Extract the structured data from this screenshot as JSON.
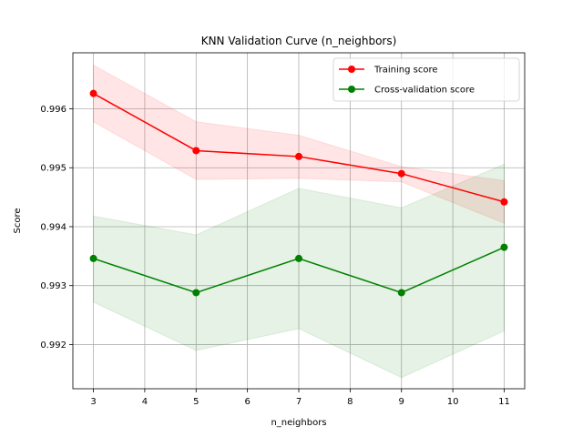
{
  "chart_data": {
    "type": "line",
    "title": "KNN Validation Curve (n_neighbors)",
    "xlabel": "n_neighbors",
    "ylabel": "Score",
    "x": [
      3,
      5,
      7,
      9,
      11
    ],
    "xlim": [
      2.6,
      11.4
    ],
    "ylim": [
      0.99125,
      0.99695
    ],
    "x_ticks": [
      "3",
      "4",
      "5",
      "6",
      "7",
      "8",
      "9",
      "10",
      "11"
    ],
    "y_ticks": [
      "0.992",
      "0.993",
      "0.994",
      "0.995",
      "0.996"
    ],
    "grid": true,
    "legend_position": "top-right",
    "series": [
      {
        "name": "Training score",
        "color": "#ff0000",
        "values": [
          0.99626,
          0.99529,
          0.99519,
          0.9949,
          0.99442
        ],
        "band_lower": [
          0.99578,
          0.9948,
          0.99482,
          0.99476,
          0.99406
        ],
        "band_upper": [
          0.99674,
          0.99578,
          0.99555,
          0.99502,
          0.99478
        ]
      },
      {
        "name": "Cross-validation score",
        "color": "#008000",
        "values": [
          0.99346,
          0.99288,
          0.99346,
          0.99288,
          0.99365
        ],
        "band_lower": [
          0.99272,
          0.9919,
          0.99227,
          0.99144,
          0.99223
        ],
        "band_upper": [
          0.99418,
          0.99386,
          0.99465,
          0.99432,
          0.99506
        ]
      }
    ]
  }
}
